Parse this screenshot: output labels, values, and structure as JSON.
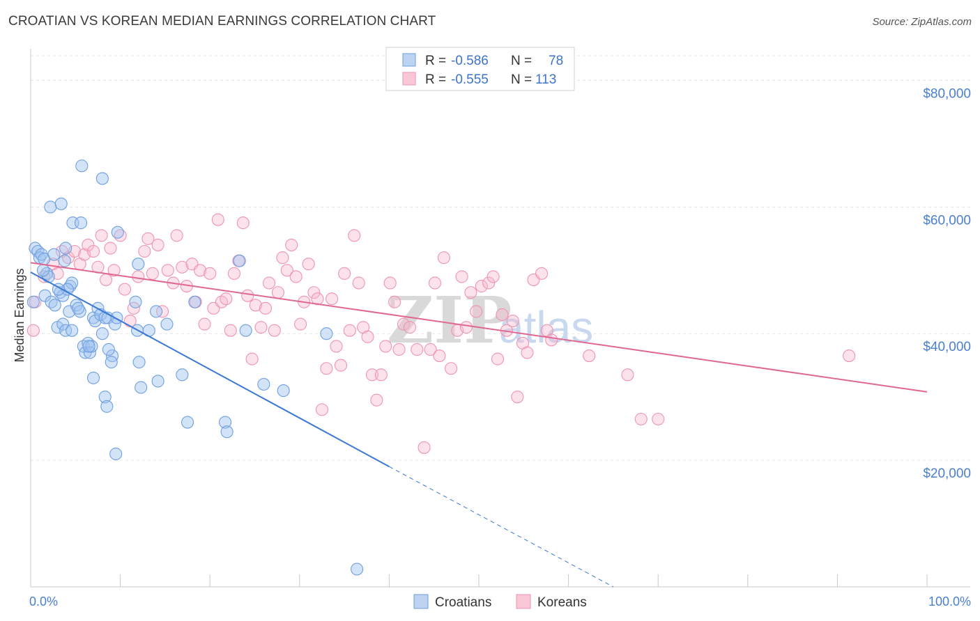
{
  "title": "CROATIAN VS KOREAN MEDIAN EARNINGS CORRELATION CHART",
  "source": "Source: ZipAtlas.com",
  "watermark": {
    "zip": "ZIP",
    "atlas": "atlas"
  },
  "colors": {
    "blue": "#6d9fe0",
    "blue_line": "#3a78d4",
    "pink": "#ef93b0",
    "pink_line": "#e06890",
    "axis_text": "#4a7fd0"
  },
  "legend": {
    "rows": [
      {
        "r_label": "R = ",
        "r_value": "-0.586",
        "n_label": "N = ",
        "n_value": "78"
      },
      {
        "r_label": "R = ",
        "r_value": "-0.555",
        "n_label": "N = ",
        "n_value": "113"
      }
    ]
  },
  "bottom_legend": [
    "Croatians",
    "Koreans"
  ],
  "chart_data": {
    "type": "scatter",
    "title": "CROATIAN VS KOREAN MEDIAN EARNINGS CORRELATION CHART",
    "xlabel": "",
    "ylabel": "Median Earnings",
    "xlim": [
      0,
      100
    ],
    "ylim": [
      0,
      85000
    ],
    "x_tick_labels": [
      "0.0%",
      "100.0%"
    ],
    "y_ticks": [
      20000,
      40000,
      60000,
      80000
    ],
    "y_tick_labels": [
      "$20,000",
      "$40,000",
      "$60,000",
      "$80,000"
    ],
    "grid": true,
    "legend_position": "top-center",
    "series": [
      {
        "name": "Croatians",
        "color": "#6d9fe0",
        "trend": {
          "x0": 0,
          "y0": 49700,
          "x1": 40,
          "y1": 19000,
          "dashed_to_x": 65,
          "dashed_y": 0
        },
        "points": [
          [
            0.5,
            53500
          ],
          [
            0.8,
            53000
          ],
          [
            1.0,
            52000
          ],
          [
            1.2,
            52500
          ],
          [
            1.5,
            51800
          ],
          [
            0.3,
            45000
          ],
          [
            1.8,
            49500
          ],
          [
            1.6,
            46000
          ],
          [
            2.3,
            45000
          ],
          [
            2.7,
            44500
          ],
          [
            2.0,
            49000
          ],
          [
            3.3,
            46500
          ],
          [
            3.6,
            46000
          ],
          [
            4.4,
            47500
          ],
          [
            4.6,
            48000
          ],
          [
            3.8,
            51500
          ],
          [
            3.9,
            53500
          ],
          [
            2.6,
            52500
          ],
          [
            2.2,
            60000
          ],
          [
            3.4,
            60500
          ],
          [
            4.7,
            57500
          ],
          [
            5.6,
            57500
          ],
          [
            5.7,
            66500
          ],
          [
            8.0,
            64500
          ],
          [
            3.0,
            41000
          ],
          [
            3.6,
            41500
          ],
          [
            3.9,
            40500
          ],
          [
            4.6,
            40500
          ],
          [
            4.3,
            43500
          ],
          [
            5.1,
            44500
          ],
          [
            5.5,
            43500
          ],
          [
            5.9,
            38000
          ],
          [
            6.1,
            37000
          ],
          [
            6.4,
            38500
          ],
          [
            6.6,
            37000
          ],
          [
            6.8,
            38000
          ],
          [
            7.0,
            42500
          ],
          [
            7.2,
            42000
          ],
          [
            7.5,
            44000
          ],
          [
            7.8,
            43000
          ],
          [
            8.0,
            40000
          ],
          [
            8.3,
            42500
          ],
          [
            8.6,
            42500
          ],
          [
            9.1,
            36500
          ],
          [
            9.0,
            35500
          ],
          [
            9.4,
            41500
          ],
          [
            9.6,
            42500
          ],
          [
            7.0,
            33000
          ],
          [
            8.3,
            30000
          ],
          [
            8.5,
            28500
          ],
          [
            9.5,
            21000
          ],
          [
            9.7,
            56000
          ],
          [
            11.7,
            45000
          ],
          [
            11.9,
            40500
          ],
          [
            12.1,
            35500
          ],
          [
            12.3,
            31500
          ],
          [
            12.0,
            51000
          ],
          [
            13.2,
            40500
          ],
          [
            14.2,
            32500
          ],
          [
            14.0,
            43500
          ],
          [
            15.2,
            41500
          ],
          [
            16.9,
            33500
          ],
          [
            17.5,
            26000
          ],
          [
            18.3,
            45000
          ],
          [
            21.7,
            26000
          ],
          [
            21.9,
            24500
          ],
          [
            23.3,
            51500
          ],
          [
            24.0,
            40500
          ],
          [
            26.0,
            32000
          ],
          [
            28.2,
            31000
          ],
          [
            33.0,
            40000
          ],
          [
            36.4,
            2800
          ],
          [
            4.1,
            47000
          ],
          [
            1.4,
            50000
          ],
          [
            5.3,
            44000
          ],
          [
            6.5,
            38000
          ],
          [
            8.7,
            37500
          ],
          [
            3.1,
            47000
          ]
        ]
      },
      {
        "name": "Koreans",
        "color": "#ef93b0",
        "trend": {
          "x0": 0,
          "y0": 51200,
          "x1": 100,
          "y1": 30800
        },
        "points": [
          [
            0.3,
            40500
          ],
          [
            0.5,
            45000
          ],
          [
            1.5,
            49000
          ],
          [
            2.5,
            51000
          ],
          [
            3.0,
            49500
          ],
          [
            3.5,
            53000
          ],
          [
            4.2,
            52000
          ],
          [
            4.9,
            53000
          ],
          [
            5.5,
            51000
          ],
          [
            6.0,
            52500
          ],
          [
            6.4,
            54000
          ],
          [
            7.0,
            53000
          ],
          [
            7.5,
            50500
          ],
          [
            7.9,
            55500
          ],
          [
            8.4,
            48500
          ],
          [
            8.9,
            53500
          ],
          [
            9.3,
            50000
          ],
          [
            10.0,
            55500
          ],
          [
            10.5,
            47000
          ],
          [
            11.1,
            42000
          ],
          [
            11.5,
            44000
          ],
          [
            12.0,
            49000
          ],
          [
            12.7,
            53000
          ],
          [
            13.1,
            55000
          ],
          [
            13.6,
            49500
          ],
          [
            14.2,
            54000
          ],
          [
            14.7,
            43500
          ],
          [
            15.3,
            50000
          ],
          [
            15.9,
            48000
          ],
          [
            16.3,
            55500
          ],
          [
            16.9,
            50500
          ],
          [
            17.4,
            47500
          ],
          [
            18.0,
            51000
          ],
          [
            18.4,
            45000
          ],
          [
            18.9,
            50000
          ],
          [
            19.4,
            41500
          ],
          [
            20.0,
            49500
          ],
          [
            20.4,
            44000
          ],
          [
            20.9,
            58000
          ],
          [
            21.3,
            45000
          ],
          [
            21.8,
            45500
          ],
          [
            22.3,
            40500
          ],
          [
            22.7,
            49500
          ],
          [
            23.2,
            51500
          ],
          [
            23.7,
            57500
          ],
          [
            24.2,
            46000
          ],
          [
            24.7,
            36000
          ],
          [
            25.1,
            44500
          ],
          [
            25.7,
            41000
          ],
          [
            26.2,
            44000
          ],
          [
            26.6,
            48000
          ],
          [
            27.2,
            40500
          ],
          [
            27.6,
            46500
          ],
          [
            28.1,
            52000
          ],
          [
            28.6,
            50000
          ],
          [
            29.1,
            54000
          ],
          [
            29.6,
            49000
          ],
          [
            30.1,
            41500
          ],
          [
            30.5,
            45000
          ],
          [
            31.0,
            51000
          ],
          [
            31.6,
            46500
          ],
          [
            32.0,
            45500
          ],
          [
            32.5,
            28000
          ],
          [
            33.0,
            34500
          ],
          [
            33.6,
            45500
          ],
          [
            34.1,
            38000
          ],
          [
            34.6,
            35000
          ],
          [
            35.0,
            49500
          ],
          [
            35.6,
            40500
          ],
          [
            36.1,
            55500
          ],
          [
            36.6,
            48000
          ],
          [
            37.1,
            41000
          ],
          [
            37.6,
            39500
          ],
          [
            38.1,
            33500
          ],
          [
            38.6,
            29500
          ],
          [
            39.1,
            33500
          ],
          [
            39.6,
            38000
          ],
          [
            40.1,
            48000
          ],
          [
            40.6,
            45000
          ],
          [
            41.1,
            37500
          ],
          [
            41.6,
            41500
          ],
          [
            42.3,
            41000
          ],
          [
            43.1,
            37500
          ],
          [
            43.9,
            22000
          ],
          [
            44.6,
            37500
          ],
          [
            45.1,
            48000
          ],
          [
            45.6,
            36500
          ],
          [
            46.1,
            52000
          ],
          [
            46.9,
            34500
          ],
          [
            47.6,
            40500
          ],
          [
            48.1,
            49000
          ],
          [
            48.6,
            41000
          ],
          [
            49.1,
            46500
          ],
          [
            49.7,
            43500
          ],
          [
            50.3,
            47500
          ],
          [
            51.1,
            48000
          ],
          [
            51.6,
            49000
          ],
          [
            52.1,
            36000
          ],
          [
            52.6,
            43000
          ],
          [
            53.1,
            40500
          ],
          [
            53.8,
            42000
          ],
          [
            54.3,
            30000
          ],
          [
            54.9,
            38500
          ],
          [
            55.4,
            37000
          ],
          [
            56.1,
            48500
          ],
          [
            57.0,
            49500
          ],
          [
            57.6,
            40500
          ],
          [
            58.1,
            39000
          ],
          [
            62.3,
            36500
          ],
          [
            66.6,
            33500
          ],
          [
            68.1,
            26500
          ],
          [
            70.0,
            26500
          ],
          [
            91.3,
            36500
          ]
        ]
      }
    ]
  }
}
